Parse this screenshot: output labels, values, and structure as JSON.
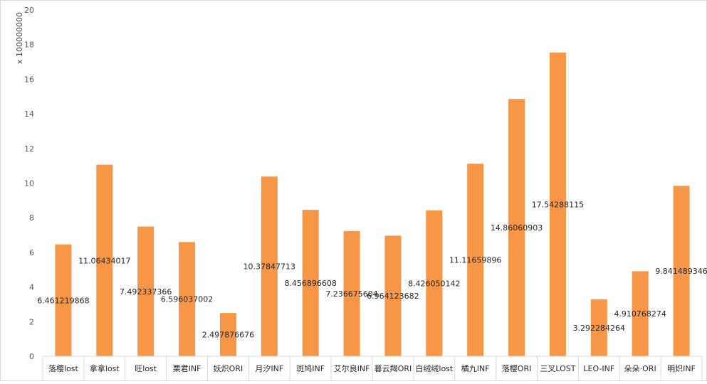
{
  "chart_data": {
    "type": "bar",
    "title": "",
    "xlabel": "",
    "ylabel": "",
    "y_unit_label": "x 100000000",
    "ylim": [
      0,
      20
    ],
    "y_ticks": [
      0,
      2,
      4,
      6,
      8,
      10,
      12,
      14,
      16,
      18,
      20
    ],
    "grid": false,
    "legend": "none",
    "bar_color": "#F79646",
    "categories": [
      "落樱lost",
      "拿拿lost",
      "旺lost",
      "栗君INF",
      "妖炽ORI",
      "月汐INF",
      "斑鸠INF",
      "艾尔良INF",
      "暮云羯ORI",
      "白绒绒lost",
      "橘九INF",
      "落樱ORI",
      "三叉LOST",
      "LEO-INF",
      "朵朵·ORI",
      "明炽INF"
    ],
    "values": [
      6.461219868,
      11.06434017,
      7.492337366,
      6.596037002,
      2.497876676,
      10.37847713,
      8.456896608,
      7.236675604,
      6.964123682,
      8.426050142,
      11.11659896,
      14.86060903,
      17.54288115,
      3.292284264,
      4.910768274,
      9.841489346
    ],
    "data_labels": [
      "6.461219868",
      "11.06434017",
      "7.492337366",
      "6.596037002",
      "2.497876676",
      "10.37847713",
      "8.456896608",
      "7.236675604",
      "6.964123682",
      "8.426050142",
      "11.11659896",
      "14.86060903",
      "17.54288115",
      "3.292284264",
      "4.910768274",
      "9.841489346"
    ]
  }
}
